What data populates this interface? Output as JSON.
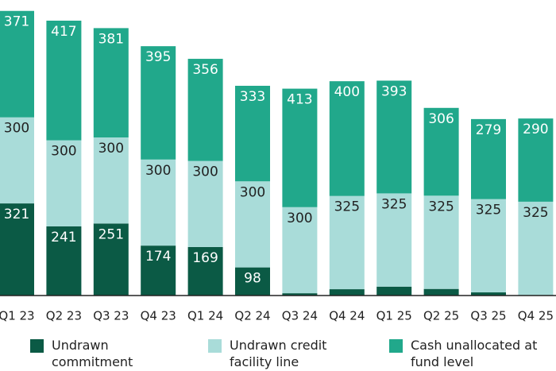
{
  "chart_data": {
    "type": "stacked_bar",
    "categories": [
      "Q1 23",
      "Q2 23",
      "Q3 23",
      "Q4 23",
      "Q1 24",
      "Q2 24",
      "Q3 24",
      "Q4 24",
      "Q1 25",
      "Q2 25",
      "Q3 25",
      "Q4 25"
    ],
    "series": [
      {
        "name": "Undrawn commitment",
        "color": "#0b5a45",
        "values": [
          321,
          241,
          251,
          174,
          169,
          98,
          8,
          22,
          31,
          23,
          11,
          2
        ]
      },
      {
        "name": "Undrawn credit facility line",
        "color": "#a9dcd9",
        "values": [
          300,
          300,
          300,
          300,
          300,
          300,
          300,
          325,
          325,
          325,
          325,
          325
        ]
      },
      {
        "name": "Cash unallocated at fund level",
        "color": "#21a88b",
        "values": [
          371,
          417,
          381,
          395,
          356,
          333,
          413,
          400,
          393,
          306,
          279,
          290
        ]
      }
    ],
    "ylim": [
      0,
      1030
    ]
  }
}
